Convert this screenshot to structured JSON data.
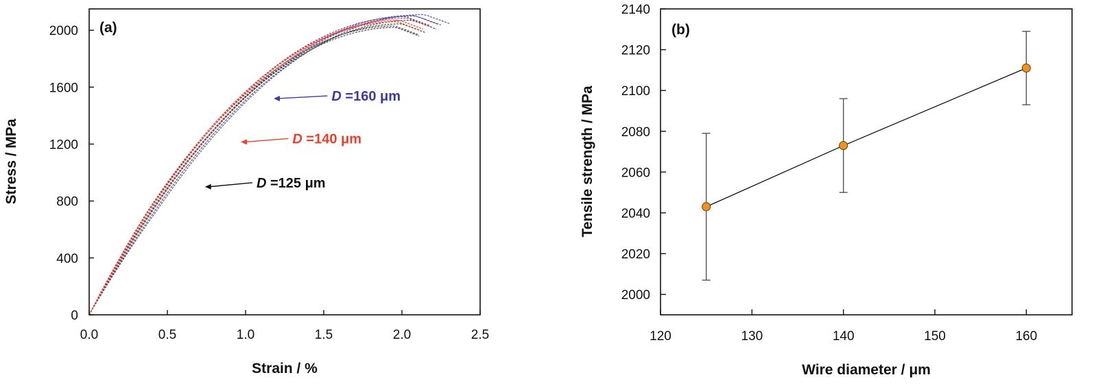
{
  "chart_data": [
    {
      "panel_label": "(a)",
      "type": "line",
      "xlabel": "Strain / %",
      "ylabel": "Stress / MPa",
      "xlim": [
        0,
        2.5
      ],
      "ylim": [
        0,
        2150
      ],
      "xticks": [
        0,
        0.5,
        1.0,
        1.5,
        2.0,
        2.5
      ],
      "xtick_labels": [
        "0.0",
        "0.5",
        "1.0",
        "1.5",
        "2.0",
        "2.5"
      ],
      "yticks": [
        0,
        400,
        800,
        1200,
        1600,
        2000
      ],
      "ytick_labels": [
        "0",
        "400",
        "800",
        "1200",
        "1600",
        "2000"
      ],
      "grid": false,
      "series": [
        {
          "color": "#4a4aa8",
          "variants": [
            {
              "fracture_strain": 2.28,
              "peak_stress": 2110,
              "shift": 0.025
            },
            {
              "fracture_strain": 2.25,
              "peak_stress": 2100,
              "shift": 0.0
            },
            {
              "fracture_strain": 2.2,
              "peak_stress": 2095,
              "shift": -0.02
            },
            {
              "fracture_strain": 2.22,
              "peak_stress": 2105,
              "shift": 0.01
            }
          ]
        },
        {
          "color": "#e8402a",
          "variants": [
            {
              "fracture_strain": 2.18,
              "peak_stress": 2085,
              "shift": 0.01
            },
            {
              "fracture_strain": 2.15,
              "peak_stress": 2070,
              "shift": -0.015
            },
            {
              "fracture_strain": 2.12,
              "peak_stress": 2060,
              "shift": 0.0
            }
          ]
        },
        {
          "color": "#444444",
          "variants": [
            {
              "fracture_strain": 2.2,
              "peak_stress": 2070,
              "shift": 0.02
            },
            {
              "fracture_strain": 2.15,
              "peak_stress": 2045,
              "shift": 0.0
            },
            {
              "fracture_strain": 2.12,
              "peak_stress": 2030,
              "shift": -0.015
            },
            {
              "fracture_strain": 2.1,
              "peak_stress": 2020,
              "shift": 0.01
            }
          ]
        }
      ],
      "annotations": [
        {
          "italic": "D",
          "text": " =160 μm",
          "color": "#3b3b9e",
          "point": [
            1.18,
            1520
          ],
          "text_at": [
            1.55,
            1505
          ]
        },
        {
          "italic": "D",
          "text": " =140 μm",
          "color": "#e8402a",
          "point": [
            0.97,
            1215
          ],
          "text_at": [
            1.3,
            1205
          ]
        },
        {
          "italic": "D",
          "text": " =125 μm",
          "color": "#111111",
          "point": [
            0.74,
            900
          ],
          "text_at": [
            1.07,
            895
          ]
        }
      ]
    },
    {
      "panel_label": "(b)",
      "type": "scatter",
      "xlabel": "Wire diameter / μm",
      "ylabel": "Tensile strength / MPa",
      "xlim": [
        120,
        165
      ],
      "ylim": [
        1990,
        2140
      ],
      "xticks": [
        120,
        130,
        140,
        150,
        160
      ],
      "yticks": [
        2000,
        2020,
        2040,
        2060,
        2080,
        2100,
        2120,
        2140
      ],
      "grid": false,
      "marker_color": "#f0921e",
      "points": [
        {
          "x": 125,
          "y": 2043,
          "err_low": 2007,
          "err_high": 2079
        },
        {
          "x": 140,
          "y": 2073,
          "err_low": 2050,
          "err_high": 2096
        },
        {
          "x": 160,
          "y": 2111,
          "err_low": 2093,
          "err_high": 2129
        }
      ]
    }
  ]
}
